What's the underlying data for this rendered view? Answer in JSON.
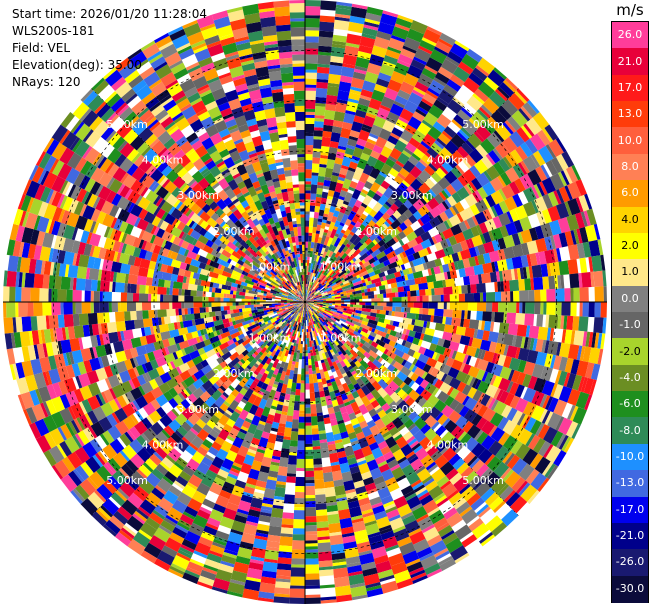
{
  "header": {
    "start_time": "Start time: 2026/01/20 11:28:04",
    "instrument": "WLS200s-181",
    "field": "Field: VEL",
    "elevation": "Elevation(deg): 35.00",
    "nrays": "NRays: 120"
  },
  "colorbar": {
    "unit": "m/s",
    "levels": [
      {
        "label": "26.0",
        "color": "#ff3d9a"
      },
      {
        "label": "21.0",
        "color": "#e8003a"
      },
      {
        "label": "17.0",
        "color": "#ff1a1a"
      },
      {
        "label": "13.0",
        "color": "#ff3c0a"
      },
      {
        "label": "10.0",
        "color": "#ff5f3c"
      },
      {
        "label": "8.0",
        "color": "#ff8055"
      },
      {
        "label": "6.0",
        "color": "#ff9b00"
      },
      {
        "label": "4.0",
        "color": "#ffd300"
      },
      {
        "label": "2.0",
        "color": "#ffff00"
      },
      {
        "label": "1.0",
        "color": "#ffe88a"
      },
      {
        "label": "0.0",
        "color": "#808080"
      },
      {
        "label": "-1.0",
        "color": "#666666"
      },
      {
        "label": "-2.0",
        "color": "#a8d42c"
      },
      {
        "label": "-4.0",
        "color": "#6b8e23"
      },
      {
        "label": "-6.0",
        "color": "#1e8f1e"
      },
      {
        "label": "-8.0",
        "color": "#2e8b57"
      },
      {
        "label": "-10.0",
        "color": "#1e90ff"
      },
      {
        "label": "-13.0",
        "color": "#4169e1"
      },
      {
        "label": "-17.0",
        "color": "#0000ee"
      },
      {
        "label": "-21.0",
        "color": "#00008b"
      },
      {
        "label": "-26.0",
        "color": "#191970"
      },
      {
        "label": "-30.0",
        "color": "#0b0b3b"
      }
    ]
  },
  "chart_data": {
    "type": "heatmap",
    "projection": "polar",
    "field": "VEL",
    "unit": "m/s",
    "nrays": 120,
    "elevation_deg": 35.0,
    "max_range_km": 6.0,
    "range_rings_km": [
      1,
      2,
      3,
      4,
      5
    ],
    "range_labels": [
      "1.00km",
      "2.00km",
      "3.00km",
      "4.00km",
      "5.00km"
    ],
    "grid": true
  }
}
